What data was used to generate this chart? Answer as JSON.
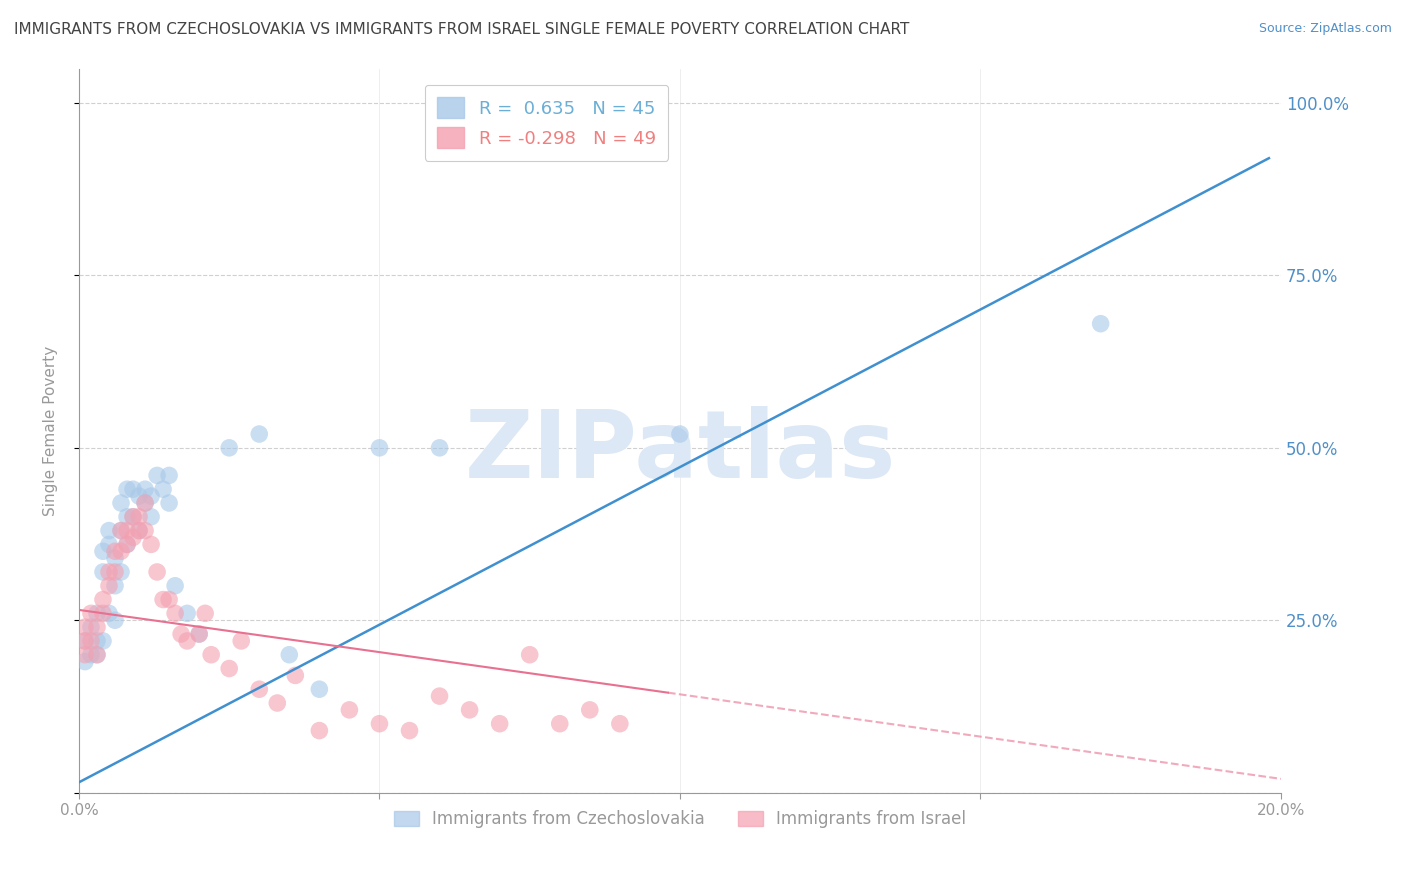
{
  "title": "IMMIGRANTS FROM CZECHOSLOVAKIA VS IMMIGRANTS FROM ISRAEL SINGLE FEMALE POVERTY CORRELATION CHART",
  "source": "Source: ZipAtlas.com",
  "ylabel": "Single Female Poverty",
  "watermark": "ZIPatlas",
  "legend_entries": [
    {
      "label": "R =  0.635   N = 45",
      "color": "#6baed6"
    },
    {
      "label": "R = -0.298   N = 49",
      "color": "#f08080"
    }
  ],
  "legend_labels_bottom": [
    "Immigrants from Czechoslovakia",
    "Immigrants from Israel"
  ],
  "xmin": 0.0,
  "xmax": 0.2,
  "ymin": 0.0,
  "ymax": 1.05,
  "yticks": [
    0.0,
    0.25,
    0.5,
    0.75,
    1.0
  ],
  "ytick_labels": [
    "",
    "25.0%",
    "50.0%",
    "75.0%",
    "100.0%"
  ],
  "xticks": [
    0.0,
    0.05,
    0.1,
    0.15,
    0.2
  ],
  "xtick_labels": [
    "0.0%",
    "",
    "",
    "",
    "20.0%"
  ],
  "blue_color": "#a8c8e8",
  "pink_color": "#f4a0b0",
  "blue_line_color": "#4090d0",
  "pink_line_color": "#e87090",
  "grid_color": "#d0d0d0",
  "axis_color": "#999999",
  "right_axis_color": "#5090c8",
  "title_color": "#444444",
  "watermark_color": "#dce8f5",
  "blue_scatter": {
    "x": [
      0.001,
      0.001,
      0.002,
      0.002,
      0.003,
      0.003,
      0.003,
      0.004,
      0.004,
      0.004,
      0.005,
      0.005,
      0.005,
      0.006,
      0.006,
      0.006,
      0.007,
      0.007,
      0.007,
      0.008,
      0.008,
      0.008,
      0.009,
      0.009,
      0.01,
      0.01,
      0.011,
      0.011,
      0.012,
      0.012,
      0.013,
      0.014,
      0.015,
      0.015,
      0.016,
      0.018,
      0.02,
      0.025,
      0.03,
      0.035,
      0.04,
      0.05,
      0.06,
      0.1,
      0.17
    ],
    "y": [
      0.19,
      0.22,
      0.2,
      0.24,
      0.22,
      0.26,
      0.2,
      0.35,
      0.32,
      0.22,
      0.38,
      0.36,
      0.26,
      0.34,
      0.3,
      0.25,
      0.42,
      0.38,
      0.32,
      0.44,
      0.4,
      0.36,
      0.44,
      0.4,
      0.43,
      0.38,
      0.44,
      0.42,
      0.43,
      0.4,
      0.46,
      0.44,
      0.42,
      0.46,
      0.3,
      0.26,
      0.23,
      0.5,
      0.52,
      0.2,
      0.15,
      0.5,
      0.5,
      0.52,
      0.68
    ]
  },
  "pink_scatter": {
    "x": [
      0.001,
      0.001,
      0.002,
      0.002,
      0.003,
      0.003,
      0.004,
      0.004,
      0.005,
      0.005,
      0.006,
      0.006,
      0.007,
      0.007,
      0.008,
      0.008,
      0.009,
      0.009,
      0.01,
      0.01,
      0.011,
      0.011,
      0.012,
      0.013,
      0.014,
      0.015,
      0.016,
      0.017,
      0.018,
      0.02,
      0.021,
      0.022,
      0.025,
      0.027,
      0.03,
      0.033,
      0.036,
      0.04,
      0.045,
      0.05,
      0.055,
      0.06,
      0.065,
      0.07,
      0.075,
      0.08,
      0.085,
      0.09,
      0.001
    ],
    "y": [
      0.2,
      0.24,
      0.22,
      0.26,
      0.24,
      0.2,
      0.28,
      0.26,
      0.32,
      0.3,
      0.35,
      0.32,
      0.38,
      0.35,
      0.38,
      0.36,
      0.4,
      0.37,
      0.4,
      0.38,
      0.42,
      0.38,
      0.36,
      0.32,
      0.28,
      0.28,
      0.26,
      0.23,
      0.22,
      0.23,
      0.26,
      0.2,
      0.18,
      0.22,
      0.15,
      0.13,
      0.17,
      0.09,
      0.12,
      0.1,
      0.09,
      0.14,
      0.12,
      0.1,
      0.2,
      0.1,
      0.12,
      0.1,
      0.22
    ]
  },
  "blue_line": {
    "x0": 0.0,
    "x1": 0.198,
    "y0": 0.015,
    "y1": 0.92
  },
  "pink_line_solid": {
    "x0": 0.0,
    "x1": 0.098,
    "y0": 0.265,
    "y1": 0.145
  },
  "pink_line_dashed": {
    "x0": 0.098,
    "x1": 0.2,
    "y0": 0.145,
    "y1": 0.02
  }
}
